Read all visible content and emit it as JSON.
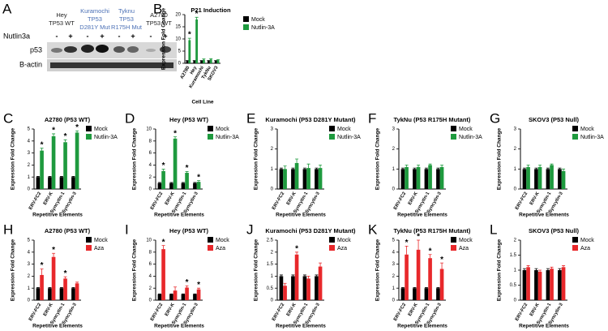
{
  "blot": {
    "panel": "A",
    "groups": [
      {
        "lines": [
          "Hey",
          "TP53 WT"
        ],
        "color": "#222222"
      },
      {
        "lines": [
          "Kuramochi",
          "TP53",
          "D281Y Mut"
        ],
        "color": "#4a6fb5"
      },
      {
        "lines": [
          "Tyknu",
          "TP53",
          "R175H Mut"
        ],
        "color": "#4a6fb5"
      },
      {
        "lines": [
          "A2780",
          "TP53 WT"
        ],
        "color": "#222222"
      }
    ],
    "treatment": "Nutlin3a",
    "signs": [
      "-",
      "+",
      "-",
      "+",
      "-",
      "+",
      "-",
      "+"
    ],
    "rows": [
      "p53",
      "B-actin"
    ]
  },
  "chart_data": [
    {
      "type": "bar",
      "panel": "B",
      "title": "P21 Induction",
      "x_label": "Cell Line",
      "y_label": "Expression Fold Change",
      "categories": [
        "A2780",
        "Hey",
        "Kuramochi",
        "TykNu",
        "SKOV3"
      ],
      "series": [
        {
          "name": "Mock",
          "color": "#000000",
          "values": [
            1,
            1,
            1,
            1,
            1
          ],
          "errors": [
            0.1,
            0.1,
            0.1,
            0.1,
            0.1
          ]
        },
        {
          "name": "Nutlin-3A",
          "color": "#1e9a3e",
          "values": [
            9.5,
            18,
            1.5,
            1.6,
            1.3
          ],
          "errors": [
            0.8,
            0.9,
            0.3,
            0.3,
            0.2
          ]
        }
      ],
      "significance": [
        "*",
        "*",
        null,
        null,
        null
      ],
      "ylim": [
        0,
        20
      ],
      "yticks": [
        0,
        5,
        10,
        15,
        20
      ]
    },
    {
      "type": "bar",
      "panel": "C",
      "title": "A2780 (P53 WT)",
      "x_label": "Repetitive Elements",
      "y_label": "Expression Fold Change",
      "categories": [
        "ERV-FC2",
        "ERV-K",
        "Syncytin-1",
        "Syncytin-3"
      ],
      "series": [
        {
          "name": "Mock",
          "color": "#000000",
          "values": [
            1,
            1,
            1,
            1
          ],
          "errors": [
            0.05,
            0.05,
            0.05,
            0.05
          ]
        },
        {
          "name": "Nutlin-3A",
          "color": "#1e9a3e",
          "values": [
            3.2,
            4.4,
            3.9,
            4.7
          ],
          "errors": [
            0.2,
            0.2,
            0.2,
            0.15
          ]
        }
      ],
      "significance": [
        "*",
        "*",
        "*",
        "*"
      ],
      "ylim": [
        0,
        5
      ],
      "yticks": [
        0,
        1,
        2,
        3,
        4,
        5
      ]
    },
    {
      "type": "bar",
      "panel": "D",
      "title": "Hey (P53 WT)",
      "x_label": "Repetitive Elements",
      "y_label": "Expression Fold Change",
      "categories": [
        "ERV-FC2",
        "ERV-K",
        "Syncytin-1",
        "Syncytin-3"
      ],
      "series": [
        {
          "name": "Mock",
          "color": "#000000",
          "values": [
            1,
            1,
            1,
            1
          ],
          "errors": [
            0.1,
            0.1,
            0.1,
            0.1
          ]
        },
        {
          "name": "Nutlin-3A",
          "color": "#1e9a3e",
          "values": [
            3,
            8.4,
            2.7,
            1.2
          ],
          "errors": [
            0.3,
            0.3,
            0.2,
            0.2
          ]
        }
      ],
      "significance": [
        "*",
        "*",
        "*",
        "*"
      ],
      "ylim": [
        0,
        10
      ],
      "yticks": [
        0,
        2,
        4,
        6,
        8,
        10
      ]
    },
    {
      "type": "bar",
      "panel": "E",
      "title": "Kuramochi (P53 D281Y Mutant)",
      "x_label": "Repetitive Elements",
      "y_label": "Expression Fold Change",
      "categories": [
        "ERV-FC2",
        "ERV-K",
        "Syncytin-1",
        "Syncytin-3"
      ],
      "series": [
        {
          "name": "Mock",
          "color": "#000000",
          "values": [
            1,
            1,
            1,
            1
          ],
          "errors": [
            0.05,
            0.05,
            0.05,
            0.05
          ]
        },
        {
          "name": "Nutlin-3A",
          "color": "#1e9a3e",
          "values": [
            1,
            1.3,
            1.05,
            1.05
          ],
          "errors": [
            0.15,
            0.2,
            0.2,
            0.15
          ]
        }
      ],
      "significance": [
        null,
        null,
        null,
        null
      ],
      "ylim": [
        0,
        3
      ],
      "yticks": [
        0,
        1,
        2,
        3
      ]
    },
    {
      "type": "bar",
      "panel": "F",
      "title": "TykNu (P53 R175H Mutant)",
      "x_label": "Repetitive Elements",
      "y_label": "Expression Fold Change",
      "categories": [
        "ERV-FC2",
        "ERV-K",
        "Syncytin-1",
        "Syncytin-3"
      ],
      "series": [
        {
          "name": "Mock",
          "color": "#000000",
          "values": [
            1,
            1,
            1,
            1
          ],
          "errors": [
            0.05,
            0.05,
            0.05,
            0.05
          ]
        },
        {
          "name": "Nutlin-3A",
          "color": "#1e9a3e",
          "values": [
            1.1,
            1.1,
            1.2,
            1.1
          ],
          "errors": [
            0.1,
            0.1,
            0.05,
            0.1
          ]
        }
      ],
      "significance": [
        null,
        null,
        null,
        null
      ],
      "ylim": [
        0,
        3
      ],
      "yticks": [
        0,
        1,
        2,
        3
      ]
    },
    {
      "type": "bar",
      "panel": "G",
      "title": "SKOV3 (P53 Null)",
      "x_label": "Repetitive Elements",
      "y_label": "Expression Fold Change",
      "categories": [
        "ERV-FC2",
        "ERV-K",
        "Syncytin-1",
        "Syncytin-3"
      ],
      "series": [
        {
          "name": "Mock",
          "color": "#000000",
          "values": [
            1,
            1,
            1,
            1
          ],
          "errors": [
            0.05,
            0.05,
            0.05,
            0.05
          ]
        },
        {
          "name": "Nutlin-3A",
          "color": "#1e9a3e",
          "values": [
            1.1,
            1.1,
            1.2,
            0.9
          ],
          "errors": [
            0.1,
            0.1,
            0.05,
            0.1
          ]
        }
      ],
      "significance": [
        null,
        null,
        null,
        null
      ],
      "ylim": [
        0,
        3
      ],
      "yticks": [
        0,
        1,
        2,
        3
      ]
    },
    {
      "type": "bar",
      "panel": "H",
      "title": "A2780 (P53 WT)",
      "x_label": "Repetitive Elements",
      "y_label": "Expression Fold Change",
      "categories": [
        "ERV-FC2",
        "ERV-K",
        "Syncytin-1",
        "Syncytin-3"
      ],
      "series": [
        {
          "name": "Mock",
          "color": "#000000",
          "values": [
            1,
            1,
            1,
            1
          ],
          "errors": [
            0.05,
            0.05,
            0.05,
            0.05
          ]
        },
        {
          "name": "Aza",
          "color": "#e8282b",
          "values": [
            2.1,
            3.6,
            1.8,
            1.4
          ],
          "errors": [
            0.5,
            0.3,
            0.15,
            0.1
          ]
        }
      ],
      "significance": [
        "*",
        "*",
        "*",
        null
      ],
      "ylim": [
        0,
        5
      ],
      "yticks": [
        0,
        1,
        2,
        3,
        4,
        5
      ]
    },
    {
      "type": "bar",
      "panel": "I",
      "title": "Hey (P53 WT)",
      "x_label": "Repetitive Elements",
      "y_label": "Expression Fold Change",
      "categories": [
        "ERV-FC2",
        "ERV-K",
        "Syncytin-1",
        "Syncytin-3"
      ],
      "series": [
        {
          "name": "Mock",
          "color": "#000000",
          "values": [
            1,
            1,
            1,
            1
          ],
          "errors": [
            0.05,
            0.05,
            0.05,
            0.05
          ]
        },
        {
          "name": "Aza",
          "color": "#e8282b",
          "values": [
            8.5,
            1.6,
            2.1,
            1.8
          ],
          "errors": [
            0.6,
            0.6,
            0.3,
            0.2
          ]
        }
      ],
      "significance": [
        "*",
        null,
        "*",
        "*"
      ],
      "ylim": [
        0,
        10
      ],
      "yticks": [
        0,
        2,
        4,
        6,
        8,
        10
      ]
    },
    {
      "type": "bar",
      "panel": "J",
      "title": "Kuramochi (P53 D281Y Mutant)",
      "x_label": "Repetitive Elements",
      "y_label": "Expression Fold Change",
      "categories": [
        "ERV-FC2",
        "ERV-K",
        "Syncytin-1",
        "Syncytin-3"
      ],
      "series": [
        {
          "name": "Mock",
          "color": "#000000",
          "values": [
            1,
            1,
            1,
            1
          ],
          "errors": [
            0.05,
            0.05,
            0.05,
            0.05
          ]
        },
        {
          "name": "Aza",
          "color": "#e8282b",
          "values": [
            0.6,
            1.9,
            0.9,
            1.4
          ],
          "errors": [
            0.1,
            0.1,
            0.1,
            0.15
          ]
        }
      ],
      "significance": [
        null,
        "*",
        null,
        null
      ],
      "ylim": [
        0,
        2.5
      ],
      "yticks": [
        0,
        0.5,
        1,
        1.5,
        2,
        2.5
      ]
    },
    {
      "type": "bar",
      "panel": "K",
      "title": "TykNu (P53 R175H Mutant)",
      "x_label": "Repetitive Elements",
      "y_label": "Expression Fold Change",
      "categories": [
        "ERV-FC2",
        "ERV-K",
        "Syncytin-1",
        "Syncytin-3"
      ],
      "series": [
        {
          "name": "Mock",
          "color": "#000000",
          "values": [
            1,
            1,
            1,
            1
          ],
          "errors": [
            0.05,
            0.05,
            0.05,
            0.05
          ]
        },
        {
          "name": "Aza",
          "color": "#e8282b",
          "values": [
            3.8,
            4.2,
            3.5,
            2.6
          ],
          "errors": [
            0.7,
            0.8,
            0.3,
            0.5
          ]
        }
      ],
      "significance": [
        "*",
        "*",
        "*",
        "*"
      ],
      "ylim": [
        0,
        5
      ],
      "yticks": [
        0,
        1,
        2,
        3,
        4,
        5
      ]
    },
    {
      "type": "bar",
      "panel": "L",
      "title": "SKOV3 (P53 Null)",
      "x_label": "Repetitive Elements",
      "y_label": "Expression Fold Change",
      "categories": [
        "ERV-FC2",
        "ERV-K",
        "Syncytin-1",
        "Syncytin-3"
      ],
      "series": [
        {
          "name": "Mock",
          "color": "#000000",
          "values": [
            1,
            1,
            1,
            1
          ],
          "errors": [
            0.05,
            0.05,
            0.05,
            0.05
          ]
        },
        {
          "name": "Aza",
          "color": "#e8282b",
          "values": [
            1.1,
            0.95,
            1.05,
            1.1
          ],
          "errors": [
            0.05,
            0.05,
            0.05,
            0.05
          ]
        }
      ],
      "significance": [
        null,
        null,
        null,
        null
      ],
      "ylim": [
        0,
        2
      ],
      "yticks": [
        0,
        0.5,
        1,
        1.5,
        2
      ]
    }
  ]
}
